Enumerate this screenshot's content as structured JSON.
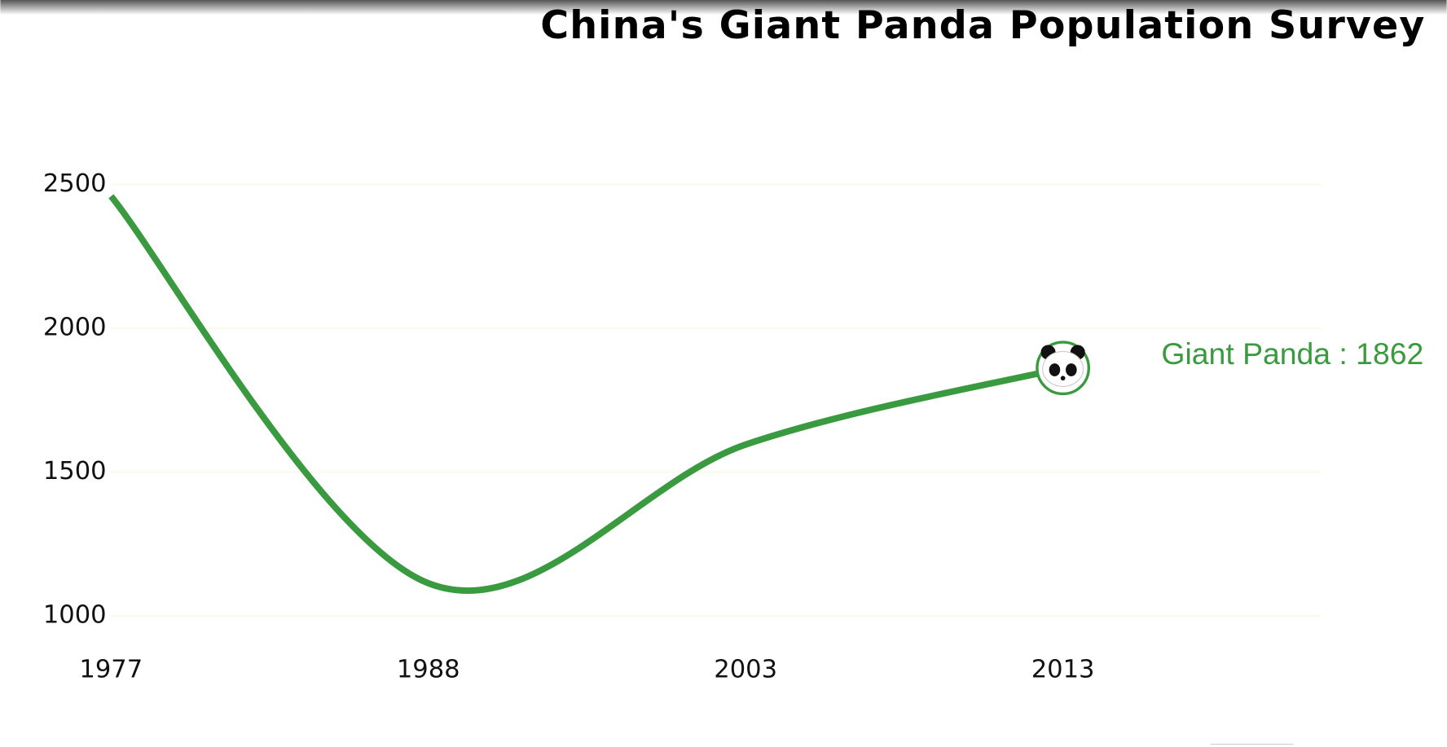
{
  "chart_data": {
    "type": "line",
    "title": "China's Giant Panda Population Survey",
    "categories": [
      "1977",
      "1988",
      "2003",
      "2013"
    ],
    "series": [
      {
        "name": "Giant Panda",
        "color": "#3a9a3f",
        "values": [
          2459,
          1114,
          1596,
          1862
        ],
        "value_labels": [
          null,
          null,
          null,
          "Giant Panda : 1862"
        ]
      }
    ],
    "ylim": [
      1000,
      2500
    ],
    "yticks": [
      1000,
      1500,
      2000,
      2500
    ],
    "grid": true
  }
}
